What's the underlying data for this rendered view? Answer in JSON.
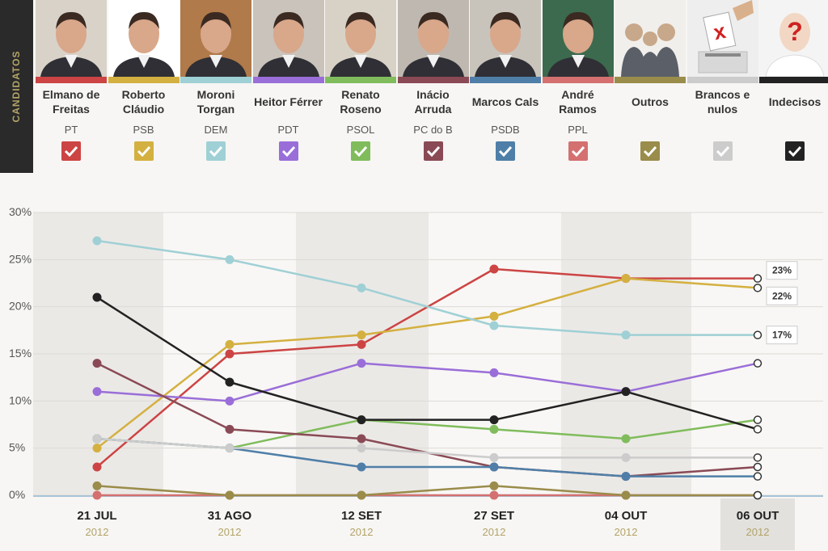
{
  "header": {
    "side_label": "CANDIDATOS",
    "candidates": [
      {
        "name1": "Elmano de",
        "name2": "Freitas",
        "party": "PT",
        "color": "#cc4444",
        "photo": "person-photo"
      },
      {
        "name1": "Roberto",
        "name2": "Cláudio",
        "party": "PSB",
        "color": "#d4b040",
        "photo": "person-photo"
      },
      {
        "name1": "Moroni",
        "name2": "Torgan",
        "party": "DEM",
        "color": "#9fd0d5",
        "photo": "person-photo"
      },
      {
        "name1": "Heitor Férrer",
        "name2": "",
        "party": "PDT",
        "color": "#9a6ed8",
        "photo": "person-photo"
      },
      {
        "name1": "Renato",
        "name2": "Roseno",
        "party": "PSOL",
        "color": "#80bc5c",
        "photo": "person-photo"
      },
      {
        "name1": "Inácio",
        "name2": "Arruda",
        "party": "PC do B",
        "color": "#8a4a55",
        "photo": "person-photo"
      },
      {
        "name1": "Marcos Cals",
        "name2": "",
        "party": "PSDB",
        "color": "#4f7fa8",
        "photo": "person-photo"
      },
      {
        "name1": "André",
        "name2": "Ramos",
        "party": "PPL",
        "color": "#d47070",
        "photo": "person-photo"
      },
      {
        "name1": "Outros",
        "name2": "",
        "party": "",
        "color": "#9a8c4a",
        "photo": "group-icon"
      },
      {
        "name1": "Brancos e",
        "name2": "nulos",
        "party": "",
        "color": "#cccccc",
        "photo": "ballot-box-icon"
      },
      {
        "name1": "Indecisos",
        "name2": "",
        "party": "",
        "color": "#222222",
        "photo": "question-person-icon"
      }
    ]
  },
  "chart_data": {
    "type": "line",
    "x": [
      {
        "date": "21 JUL",
        "year": "2012"
      },
      {
        "date": "31 AGO",
        "year": "2012"
      },
      {
        "date": "12 SET",
        "year": "2012"
      },
      {
        "date": "27 SET",
        "year": "2012"
      },
      {
        "date": "04 OUT",
        "year": "2012"
      },
      {
        "date": "06 OUT",
        "year": "2012"
      }
    ],
    "ylim": [
      0,
      30
    ],
    "yticks": [
      "0%",
      "5%",
      "10%",
      "15%",
      "20%",
      "25%",
      "30%"
    ],
    "selected_index": 5,
    "series": [
      {
        "name": "Elmano de Freitas",
        "values": [
          3,
          15,
          16,
          24,
          23,
          23
        ],
        "color": "#cc4444",
        "end_label": "23%"
      },
      {
        "name": "Roberto Cláudio",
        "values": [
          5,
          16,
          17,
          19,
          23,
          22
        ],
        "color": "#d4b040",
        "end_label": "22%"
      },
      {
        "name": "Moroni Torgan",
        "values": [
          27,
          25,
          22,
          18,
          17,
          17
        ],
        "color": "#9fd0d5",
        "end_label": "17%"
      },
      {
        "name": "Heitor Férrer",
        "values": [
          11,
          10,
          14,
          13,
          11,
          14
        ],
        "color": "#9a6ed8"
      },
      {
        "name": "Renato Roseno",
        "values": [
          6,
          5,
          8,
          7,
          6,
          8
        ],
        "color": "#80bc5c"
      },
      {
        "name": "Inácio Arruda",
        "values": [
          14,
          7,
          6,
          3,
          2,
          3
        ],
        "color": "#8a4a55"
      },
      {
        "name": "Marcos Cals",
        "values": [
          6,
          5,
          3,
          3,
          2,
          2
        ],
        "color": "#4f7fa8"
      },
      {
        "name": "André Ramos",
        "values": [
          0,
          0,
          0,
          0,
          0,
          0
        ],
        "color": "#d47070"
      },
      {
        "name": "Outros",
        "values": [
          1,
          0,
          0,
          1,
          0,
          0
        ],
        "color": "#9a8c4a"
      },
      {
        "name": "Brancos e nulos",
        "values": [
          6,
          5,
          5,
          4,
          4,
          4
        ],
        "color": "#cccccc"
      },
      {
        "name": "Indecisos",
        "values": [
          21,
          12,
          8,
          8,
          11,
          7
        ],
        "color": "#222222"
      }
    ]
  }
}
